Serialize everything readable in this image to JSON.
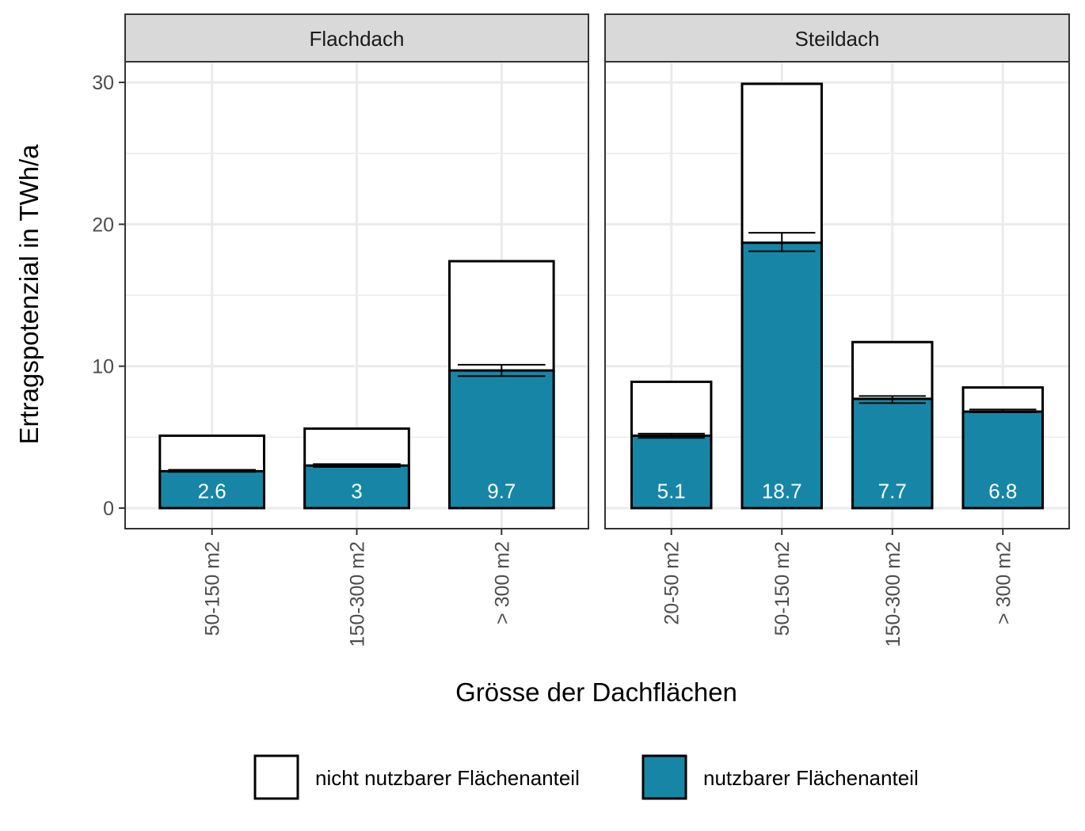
{
  "chart_data": {
    "type": "bar",
    "stacked": true,
    "ylabel": "Ertragspotenzial in TWh/a",
    "xlabel": "Grösse der Dachflächen",
    "ylim": [
      0,
      32
    ],
    "yticks": [
      0,
      10,
      20,
      30
    ],
    "grid": true,
    "legend_position": "bottom",
    "colors": {
      "usable": "#1786A6",
      "not_usable": "#FFFFFF",
      "bar_border": "#000000",
      "grid": "#EBEBEB",
      "strip_fill": "#D9D9D9",
      "panel_border": "#333333"
    },
    "legend": [
      {
        "key": "not_usable",
        "label": "nicht nutzbarer Flächenanteil"
      },
      {
        "key": "usable",
        "label": "nutzbarer Flächenanteil"
      }
    ],
    "panels": [
      {
        "title": "Flachdach",
        "categories": [
          "50-150 m2",
          "150-300 m2",
          "> 300 m2"
        ],
        "usable": [
          2.6,
          3.0,
          9.7
        ],
        "usable_labels": [
          "2.6",
          "3",
          "9.7"
        ],
        "total": [
          5.1,
          5.6,
          17.4
        ],
        "error_low": [
          2.55,
          2.9,
          9.3
        ],
        "error_high": [
          2.7,
          3.1,
          10.1
        ]
      },
      {
        "title": "Steildach",
        "categories": [
          "20-50 m2",
          "50-150 m2",
          "150-300 m2",
          "> 300 m2"
        ],
        "usable": [
          5.1,
          18.7,
          7.7,
          6.8
        ],
        "usable_labels": [
          "5.1",
          "18.7",
          "7.7",
          "6.8"
        ],
        "total": [
          8.9,
          29.9,
          11.7,
          8.5
        ],
        "error_low": [
          4.95,
          18.1,
          7.4,
          6.75
        ],
        "error_high": [
          5.25,
          19.4,
          7.9,
          6.95
        ]
      }
    ]
  }
}
